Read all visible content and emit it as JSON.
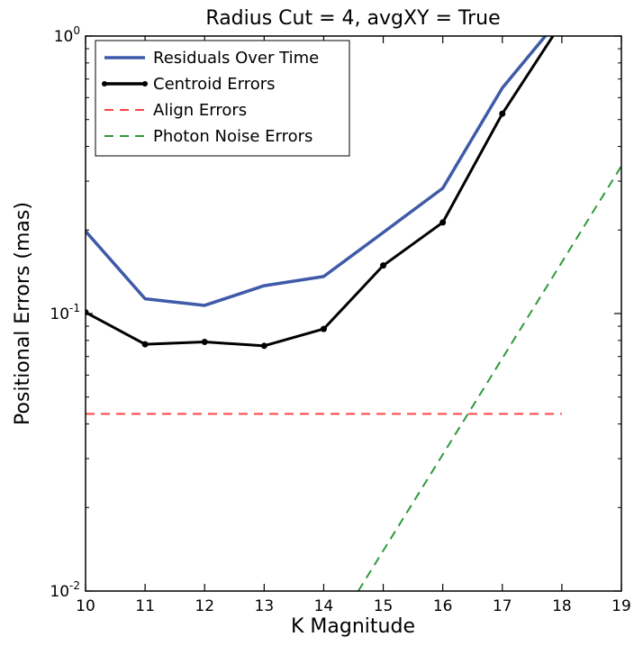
{
  "chart_data": {
    "type": "line",
    "title": "Radius Cut = 4, avgXY = True",
    "xlabel": "K Magnitude",
    "ylabel": "Positional Errors (mas)",
    "xscale": "linear",
    "yscale": "log",
    "xlim": [
      10,
      19
    ],
    "ylim": [
      0.01,
      1
    ],
    "xticks": [
      10,
      11,
      12,
      13,
      14,
      15,
      16,
      17,
      18,
      19
    ],
    "xtick_labels": [
      "10",
      "11",
      "12",
      "13",
      "14",
      "15",
      "16",
      "17",
      "18",
      "19"
    ],
    "yticks": [
      {
        "value": 1,
        "base": "10",
        "exp": "0"
      },
      {
        "value": 0.1,
        "base": "10",
        "exp": "-1"
      },
      {
        "value": 0.01,
        "base": "10",
        "exp": "-2"
      }
    ],
    "grid": false,
    "legend_position": "top-left",
    "series": [
      {
        "name": "Residuals Over Time",
        "color": "#3f5aa8",
        "style": "solid",
        "markers": false,
        "x": [
          10,
          11,
          12,
          13,
          14,
          15,
          16,
          17,
          18,
          19
        ],
        "y": [
          0.198,
          0.113,
          0.107,
          0.126,
          0.136,
          0.196,
          0.283,
          0.65,
          1.18,
          1.18
        ]
      },
      {
        "name": "Centroid Errors",
        "color": "#000000",
        "style": "solid",
        "markers": true,
        "x": [
          10,
          11,
          12,
          13,
          14,
          15,
          16,
          17,
          18,
          19
        ],
        "y": [
          0.101,
          0.0775,
          0.079,
          0.0765,
          0.088,
          0.149,
          0.213,
          0.525,
          1.12,
          1.12
        ]
      },
      {
        "name": "Align Errors",
        "color": "#ff4444",
        "style": "dashed",
        "markers": false,
        "x": [
          10,
          18
        ],
        "y": [
          0.0435,
          0.0435
        ]
      },
      {
        "name": "Photon Noise Errors",
        "color": "#2c9a3a",
        "style": "dashed",
        "markers": false,
        "x": [
          14.58,
          19
        ],
        "y": [
          0.01,
          0.34
        ]
      }
    ]
  }
}
